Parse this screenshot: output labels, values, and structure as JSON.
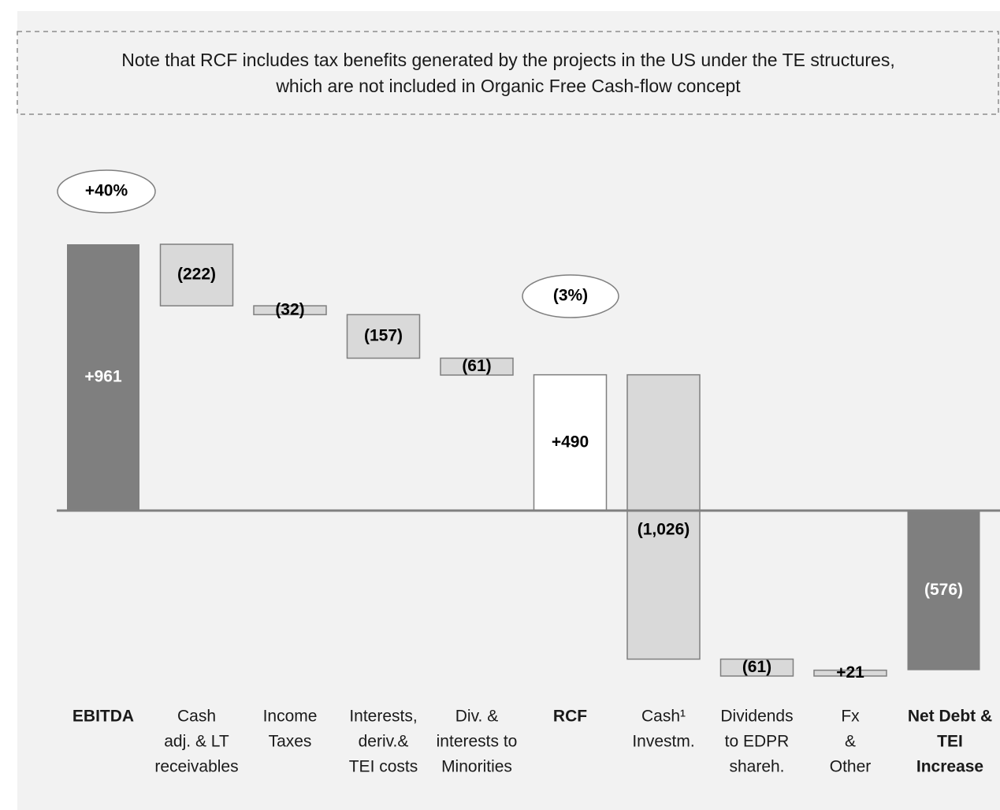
{
  "chart_data": {
    "type": "waterfall",
    "note": [
      "Note that RCF includes tax benefits generated by the projects in the US under the TE structures,",
      "which are not included in Organic Free Cash-flow concept"
    ],
    "annotations": [
      "+40%",
      "(3%)"
    ],
    "categories": [
      [
        "EBITDA"
      ],
      [
        "Cash",
        "adj. & LT",
        "receivables"
      ],
      [
        "Income",
        "Taxes"
      ],
      [
        "Interests,",
        "deriv.&",
        "TEI costs"
      ],
      [
        "Div. &",
        "interests to",
        "Minorities"
      ],
      [
        "RCF"
      ],
      [
        "Cash¹",
        "Investm."
      ],
      [
        "Dividends",
        "to EDPR",
        "shareh."
      ],
      [
        "Fx",
        "&",
        "Other"
      ],
      [
        "Net Debt &",
        "TEI",
        "Increase"
      ]
    ],
    "values": [
      961,
      -222,
      -32,
      -157,
      -61,
      490,
      -1026,
      -61,
      21,
      -576
    ],
    "value_labels": [
      "+961",
      "(222)",
      "(32)",
      "(157)",
      "(61)",
      "+490",
      "(1,026)",
      "(61)",
      "+21",
      "(576)"
    ],
    "measure": [
      "absolute",
      "relative",
      "relative",
      "relative",
      "relative",
      "absolute",
      "relative",
      "relative",
      "relative",
      "absolute"
    ],
    "colors": [
      "#7f7f7f",
      "#d9d9d9",
      "#d9d9d9",
      "#d9d9d9",
      "#d9d9d9",
      "#ffffff",
      "#d9d9d9",
      "#d9d9d9",
      "#d9d9d9",
      "#7f7f7f"
    ]
  }
}
